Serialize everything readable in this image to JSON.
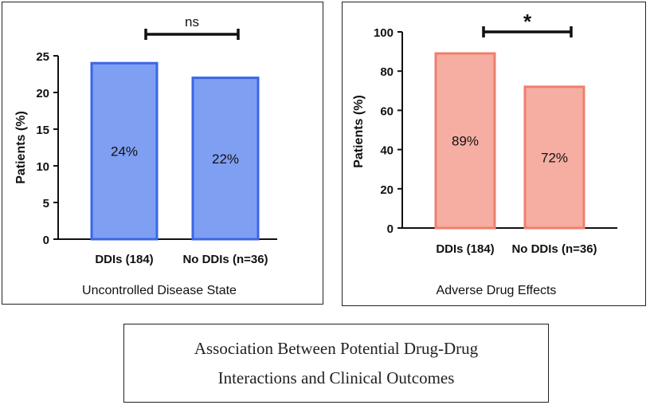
{
  "figure_caption": {
    "line1": "Association Between Potential Drug-Drug",
    "line2": "Interactions and Clinical Outcomes"
  },
  "colors": {
    "blue_fill": "#7f9ff3",
    "blue_stroke": "#3a66e8",
    "red_fill": "#f6aea2",
    "red_stroke": "#ef7f6c",
    "axis": "#111111"
  },
  "chart_data": [
    {
      "type": "bar",
      "title": "Uncontrolled Disease State",
      "ylabel": "Patients (%)",
      "xlabel": "",
      "categories": [
        "DDIs (184)",
        "No DDIs (n=36)"
      ],
      "values": [
        24,
        22
      ],
      "data_labels": [
        "24%",
        "22%"
      ],
      "ylim": [
        0,
        25
      ],
      "yticks": [
        0,
        5,
        10,
        15,
        20,
        25
      ],
      "ytick_labels": [
        "0",
        "5",
        "10",
        "15",
        "20",
        "25"
      ],
      "significance": "ns",
      "grid": false
    },
    {
      "type": "bar",
      "title": "Adverse Drug Effects",
      "ylabel": "Patients (%)",
      "xlabel": "",
      "categories": [
        "DDIs (184)",
        "No DDIs (n=36)"
      ],
      "values": [
        89,
        72
      ],
      "data_labels": [
        "89%",
        "72%"
      ],
      "ylim": [
        0,
        100
      ],
      "yticks": [
        0,
        20,
        40,
        60,
        80,
        100
      ],
      "ytick_labels": [
        "0",
        "20",
        "40",
        "60",
        "80",
        "100"
      ],
      "significance": "*",
      "grid": false
    }
  ]
}
